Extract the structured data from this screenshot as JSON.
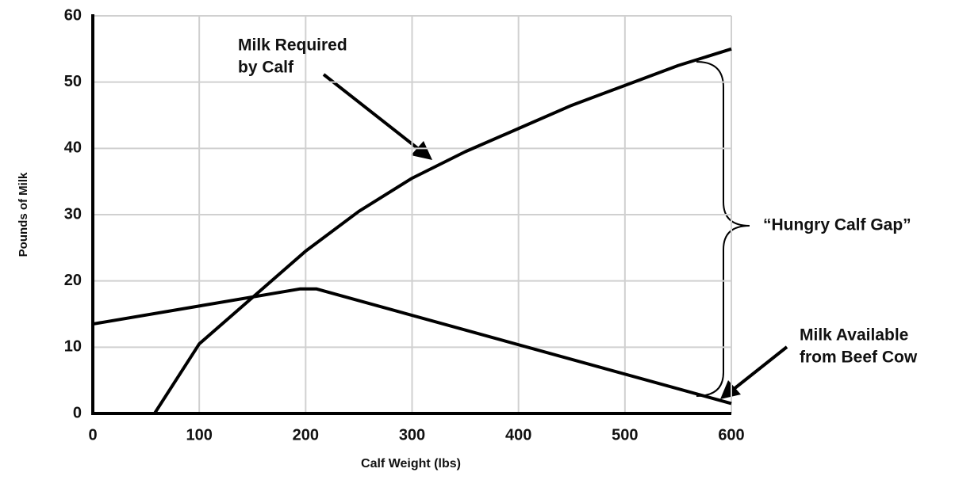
{
  "chart_data": {
    "type": "line",
    "xlabel": "Calf Weight (lbs)",
    "ylabel": "Pounds of Milk",
    "series": [
      {
        "color": "#000000",
        "x": [
          58,
          100,
          150,
          200,
          250,
          300,
          350,
          400,
          450,
          500,
          550,
          600
        ],
        "values": [
          0,
          10.5,
          17.5,
          24.5,
          30.5,
          35.5,
          39.5,
          43,
          46.5,
          49.5,
          52.5,
          55
        ]
      },
      {
        "color": "#000000",
        "x": [
          0,
          195,
          210,
          600
        ],
        "values": [
          13.5,
          18.8,
          18.8,
          1.5
        ]
      }
    ],
    "xlim": [
      0,
      600
    ],
    "xticks": [
      0,
      100,
      200,
      300,
      400,
      500,
      600
    ],
    "ylim": [
      0,
      60
    ],
    "yticks": [
      0,
      10,
      20,
      30,
      40,
      50,
      60
    ],
    "grid": true,
    "annotations": [
      {
        "lines": [
          "Milk Required",
          "by Calf"
        ]
      },
      {
        "lines": [
          "“Hungry Calf Gap”"
        ]
      },
      {
        "lines": [
          "Milk Available",
          "from Beef Cow"
        ]
      }
    ]
  }
}
